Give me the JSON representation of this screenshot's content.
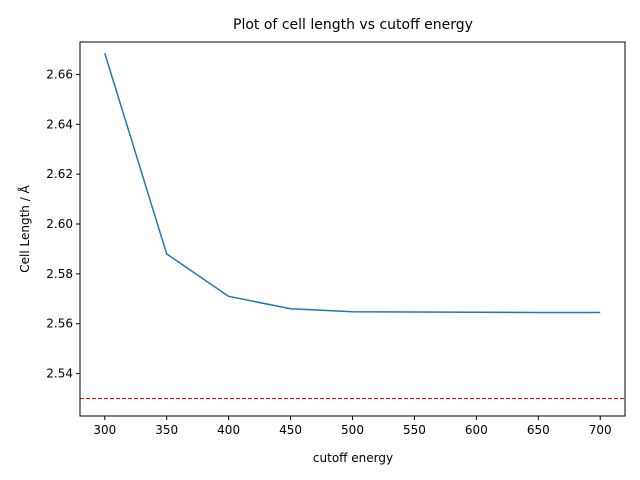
{
  "chart_data": {
    "type": "line",
    "title": "Plot of cell length vs cutoff energy",
    "xlabel": "cutoff energy",
    "ylabel": "Cell Length / Å",
    "xlim": [
      280,
      720
    ],
    "ylim": [
      2.523,
      2.673
    ],
    "x_ticks": [
      "300",
      "350",
      "400",
      "450",
      "500",
      "550",
      "600",
      "650",
      "700"
    ],
    "y_ticks": [
      "2.54",
      "2.56",
      "2.58",
      "2.60",
      "2.62",
      "2.64",
      "2.66"
    ],
    "grid": false,
    "series": [
      {
        "x": [
          300,
          350,
          400,
          450,
          500,
          550,
          600,
          650,
          700
        ],
        "y": [
          2.6685,
          2.588,
          2.571,
          2.566,
          2.5648,
          2.5647,
          2.5646,
          2.5645,
          2.5645
        ],
        "color": "#1f77b4"
      }
    ],
    "reference_line": {
      "y": 2.53,
      "color": "#ff0000",
      "style": "dashed"
    }
  }
}
